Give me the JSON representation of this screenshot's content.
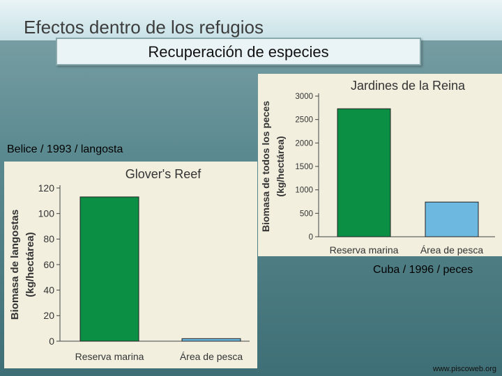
{
  "slide": {
    "title": "Efectos dentro de los refugios",
    "subtitle": "Recuperación de especies",
    "caption_left": "Belice / 1993 / langosta",
    "caption_right": "Cuba / 1996 / peces",
    "footer": "www.piscoweb.org"
  },
  "chart_data": [
    {
      "type": "bar",
      "title": "Glover's Reef",
      "ylabel": "Biomasa de langostas (kg/hectárea)",
      "ylabel_lines": [
        "Biomasa de langostas",
        "(kg/hectárea)"
      ],
      "categories": [
        "Reserva marina",
        "Área de pesca"
      ],
      "values": [
        113,
        2
      ],
      "colors": [
        "#0b8f44",
        "#6cb8e0"
      ],
      "ylim": [
        0,
        120
      ],
      "yticks": [
        0,
        20,
        40,
        60,
        80,
        100,
        120
      ]
    },
    {
      "type": "bar",
      "title": "Jardines de la Reina",
      "ylabel": "Biomasa de todos los peces (kg/hectárea)",
      "ylabel_lines": [
        "Biomasa de todos los peces",
        "(kg/hectárea)"
      ],
      "categories": [
        "Reserva marina",
        "Área de pesca"
      ],
      "values": [
        2730,
        740
      ],
      "colors": [
        "#0b8f44",
        "#6cb8e0"
      ],
      "ylim": [
        0,
        3000
      ],
      "yticks": [
        0,
        500,
        1000,
        1500,
        2000,
        2500,
        3000
      ]
    }
  ]
}
